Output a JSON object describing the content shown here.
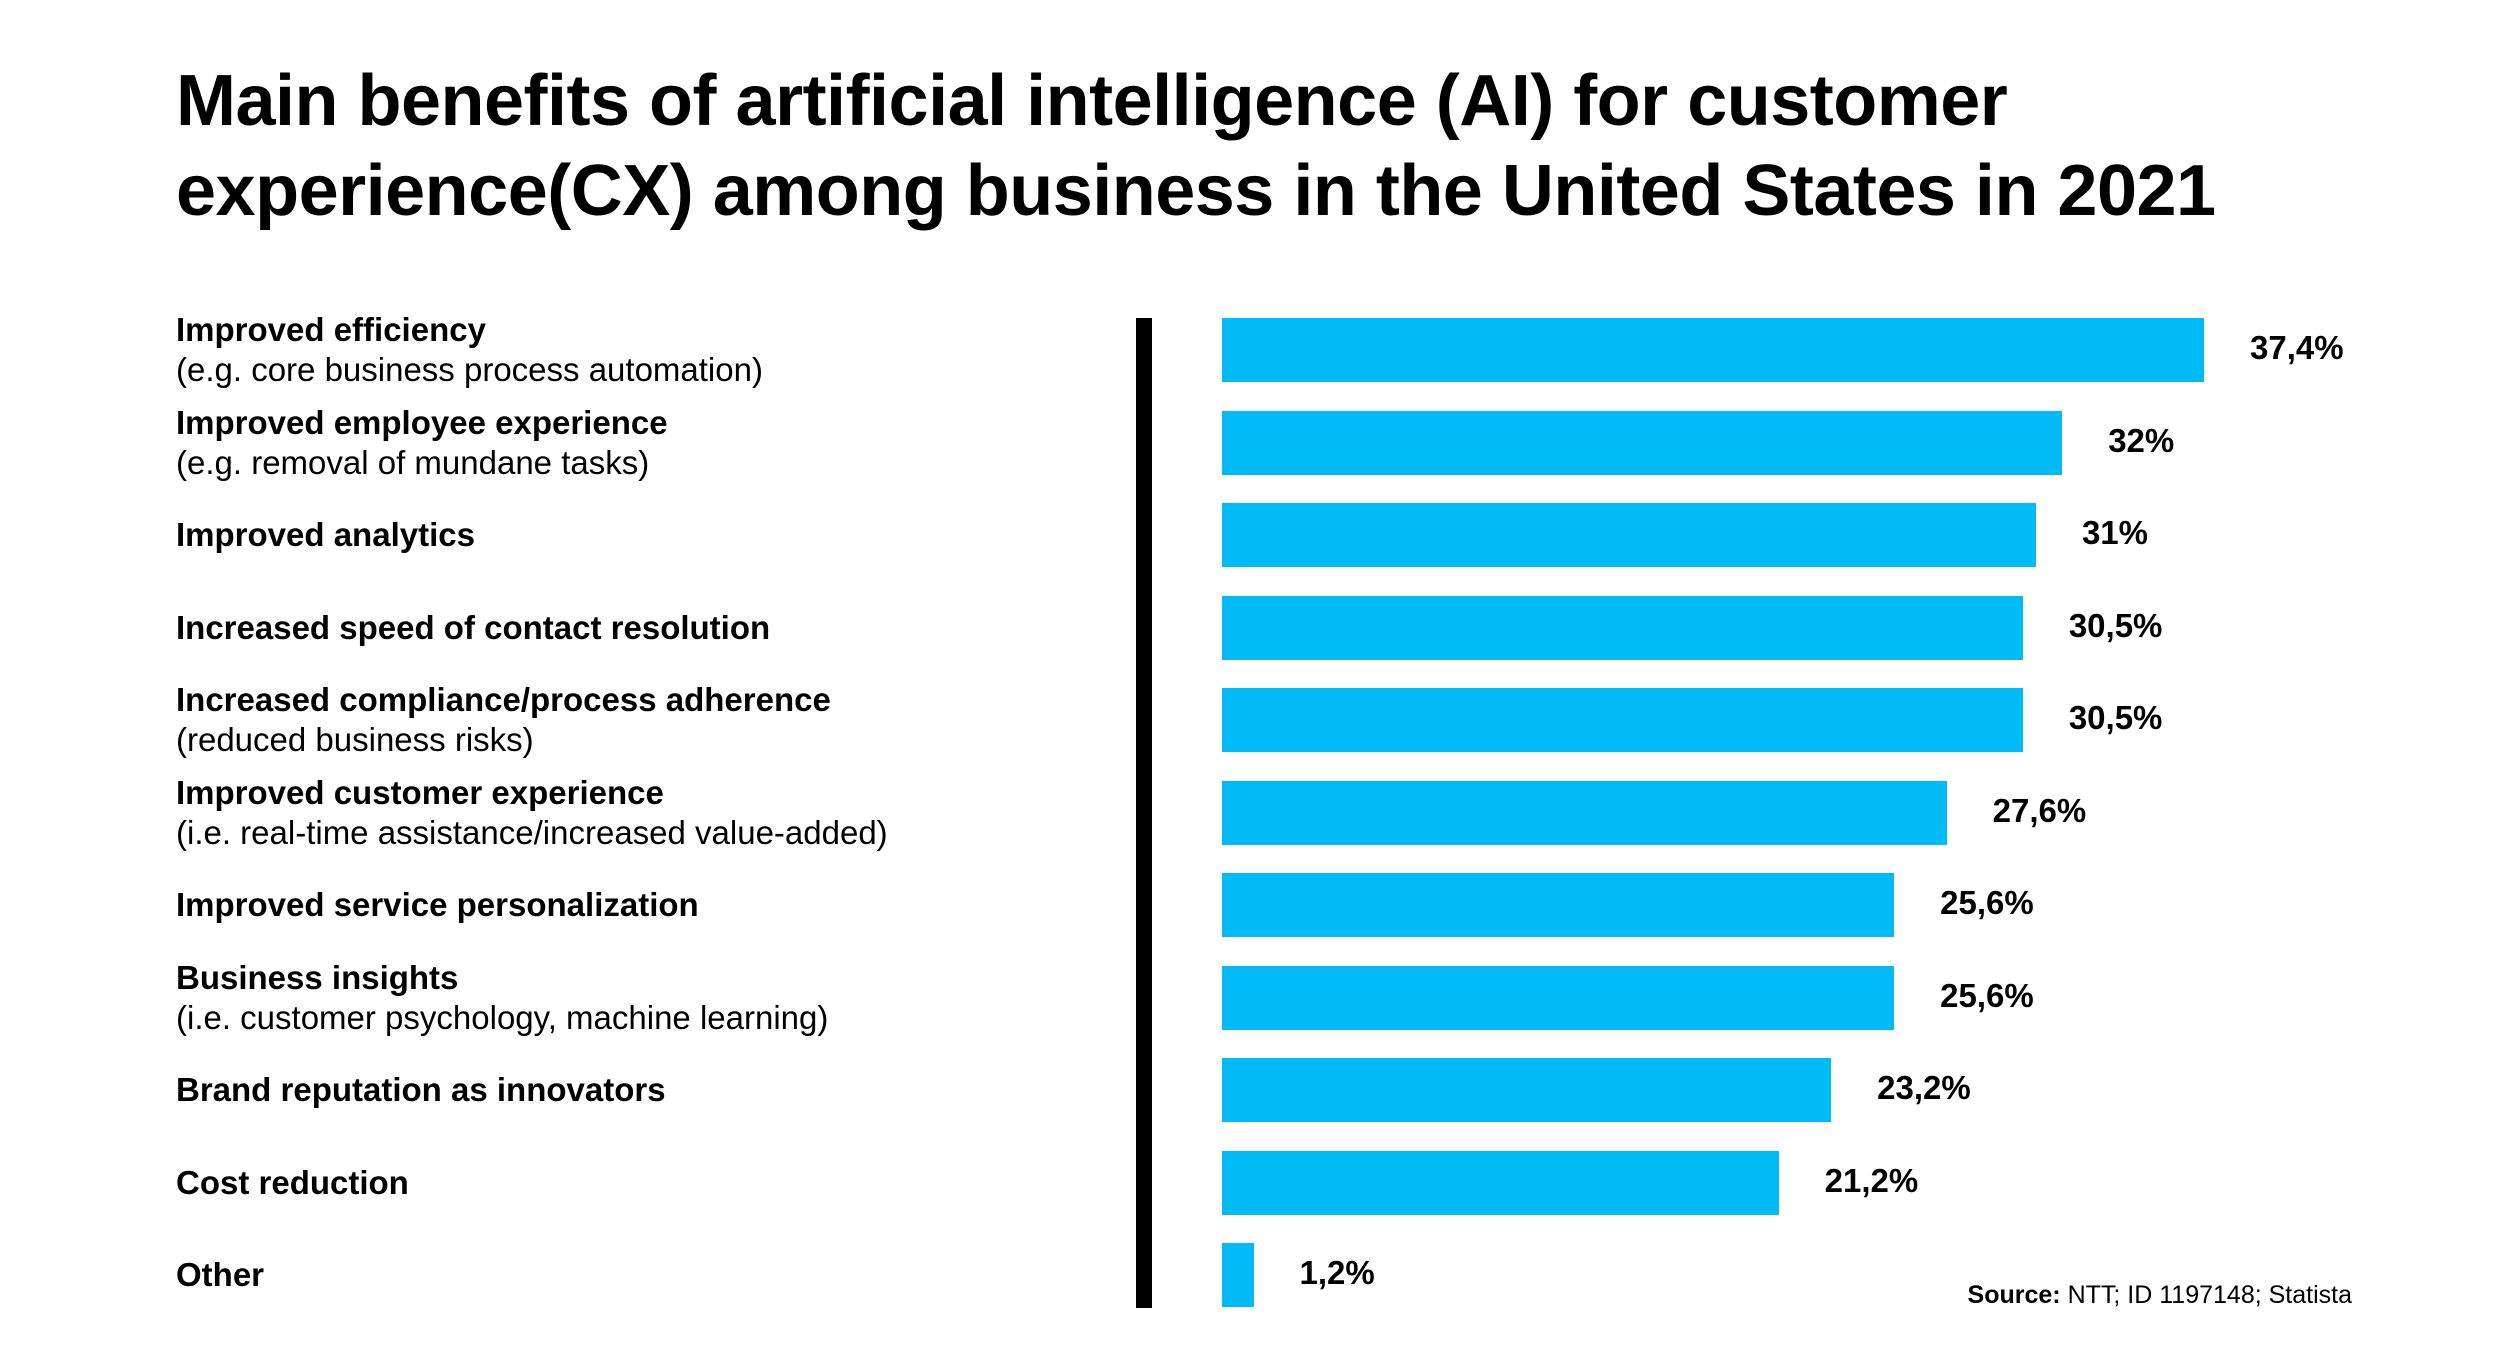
{
  "chart_data": {
    "type": "bar",
    "orientation": "horizontal",
    "title_lines": [
      "Main benefits of artificial intelligence (AI) for customer",
      "experience(CX) among business in the United States in 2021"
    ],
    "categories": [
      {
        "label": "Improved efficiency",
        "sublabel": "(e.g. core business process automation)"
      },
      {
        "label": "Improved employee experience",
        "sublabel": "(e.g. removal of mundane tasks)"
      },
      {
        "label": "Improved analytics",
        "sublabel": ""
      },
      {
        "label": "Increased speed of contact resolution",
        "sublabel": ""
      },
      {
        "label": "Increased compliance/process adherence",
        "sublabel": "(reduced business risks)"
      },
      {
        "label": "Improved customer experience",
        "sublabel": "(i.e. real-time assistance/increased value-added)"
      },
      {
        "label": "Improved service personalization",
        "sublabel": ""
      },
      {
        "label": "Business insights",
        "sublabel": "(i.e. customer psychology, machine learning)"
      },
      {
        "label": "Brand reputation as innovators",
        "sublabel": ""
      },
      {
        "label": "Cost reduction",
        "sublabel": ""
      },
      {
        "label": "Other",
        "sublabel": ""
      }
    ],
    "values": [
      37.4,
      32,
      31,
      30.5,
      30.5,
      27.6,
      25.6,
      25.6,
      23.2,
      21.2,
      1.2
    ],
    "value_labels": [
      "37,4%",
      "32%",
      "31%",
      "30,5%",
      "30,5%",
      "27,6%",
      "25,6%",
      "25,6%",
      "23,2%",
      "21,2%",
      "1,2%"
    ],
    "unit": "%",
    "xlim": [
      0,
      37.4
    ],
    "bar_color": "#00bbf6",
    "axis_color": "#000000",
    "grid": false,
    "legend": "none",
    "source_prefix": "Source:",
    "source_text": " NTT; ID 1197148; Statista"
  }
}
